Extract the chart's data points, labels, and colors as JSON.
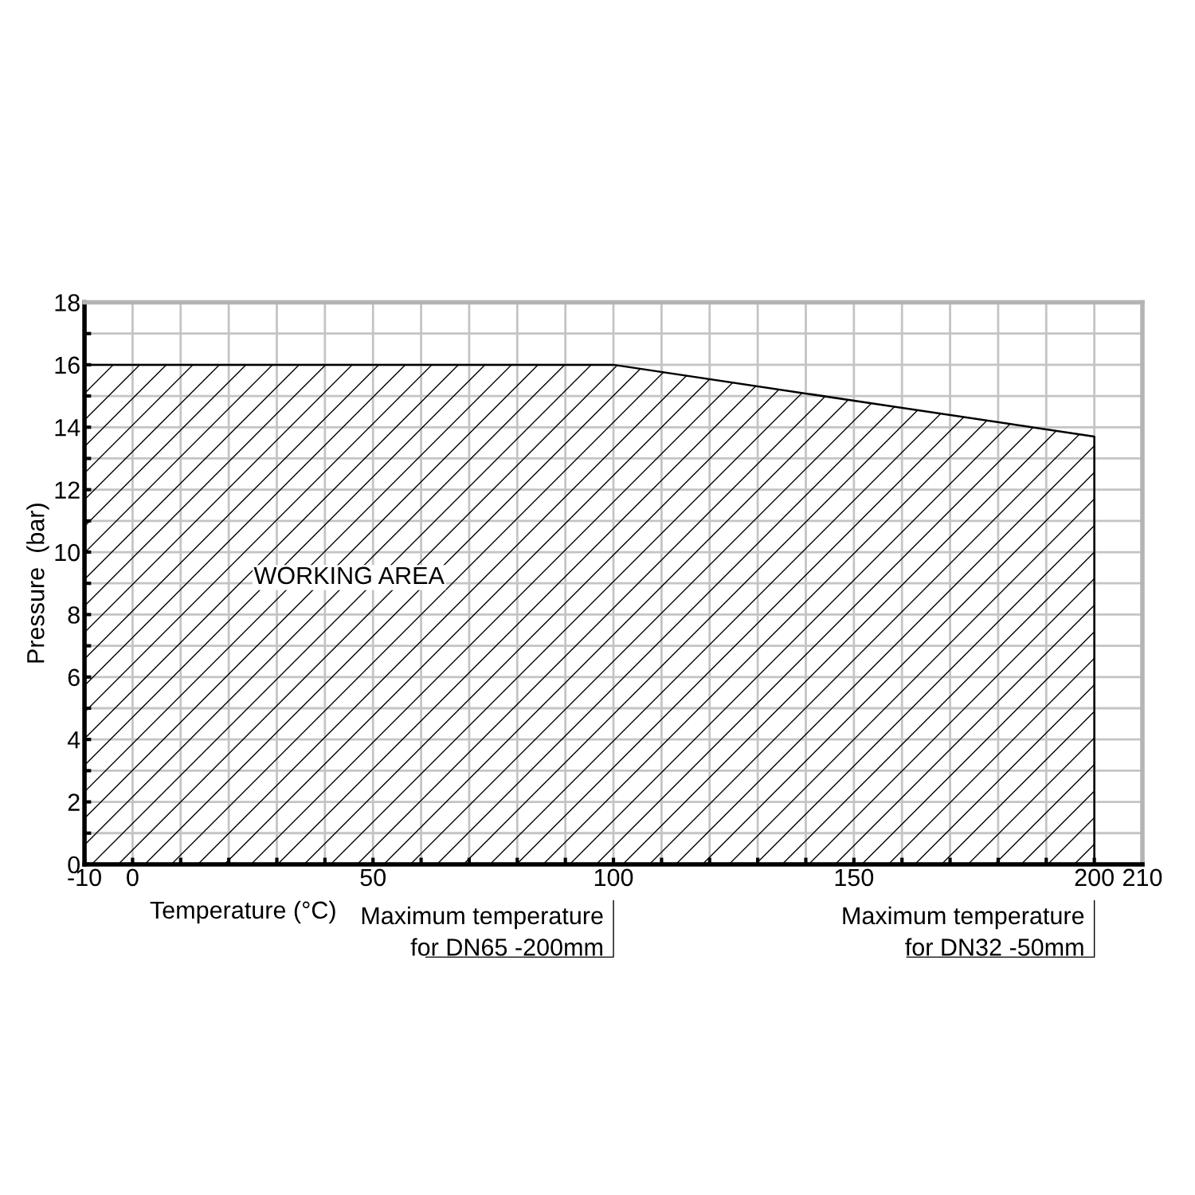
{
  "chart_data": {
    "type": "area",
    "xlabel": "Temperature (°C)",
    "ylabel": "Pressure  (bar)",
    "x": [
      -10,
      100,
      200,
      200
    ],
    "series": [
      {
        "color": "#000000",
        "values": [
          16,
          16,
          13.7,
          0
        ]
      }
    ],
    "xlim": [
      -10,
      210
    ],
    "xticks": [
      -10,
      0,
      {
        "value": 10,
        "label": null
      },
      {
        "value": 20,
        "label": null
      },
      {
        "value": 30,
        "label": null
      },
      {
        "value": 40,
        "label": null
      },
      50,
      {
        "value": 60,
        "label": null
      },
      {
        "value": 70,
        "label": null
      },
      {
        "value": 80,
        "label": null
      },
      {
        "value": 90,
        "label": null
      },
      100,
      {
        "value": 110,
        "label": null
      },
      {
        "value": 120,
        "label": null
      },
      {
        "value": 130,
        "label": null
      },
      {
        "value": 140,
        "label": null
      },
      150,
      {
        "value": 160,
        "label": null
      },
      {
        "value": 170,
        "label": null
      },
      {
        "value": 180,
        "label": null
      },
      {
        "value": 190,
        "label": null
      },
      200,
      210
    ],
    "ylim": [
      0,
      18
    ],
    "yticks": [
      0,
      {
        "value": 1,
        "label": null
      },
      2,
      {
        "value": 3,
        "label": null
      },
      4,
      {
        "value": 5,
        "label": null
      },
      6,
      {
        "value": 7,
        "label": null
      },
      8,
      {
        "value": 9,
        "label": null
      },
      10,
      {
        "value": 11,
        "label": null
      },
      12,
      {
        "value": 13,
        "label": null
      },
      14,
      {
        "value": 15,
        "label": null
      },
      16,
      {
        "value": 17,
        "label": null
      },
      18
    ],
    "grid": true,
    "annotations": [
      "WORKING AREA"
    ],
    "ref_lines": [
      {
        "axis": "x",
        "value": 100,
        "label": "Maximum temperature\nfor DN65 -200mm"
      },
      {
        "axis": "x",
        "value": 200,
        "label": "Maximum temperature\nfor DN32 -50mm"
      }
    ]
  }
}
